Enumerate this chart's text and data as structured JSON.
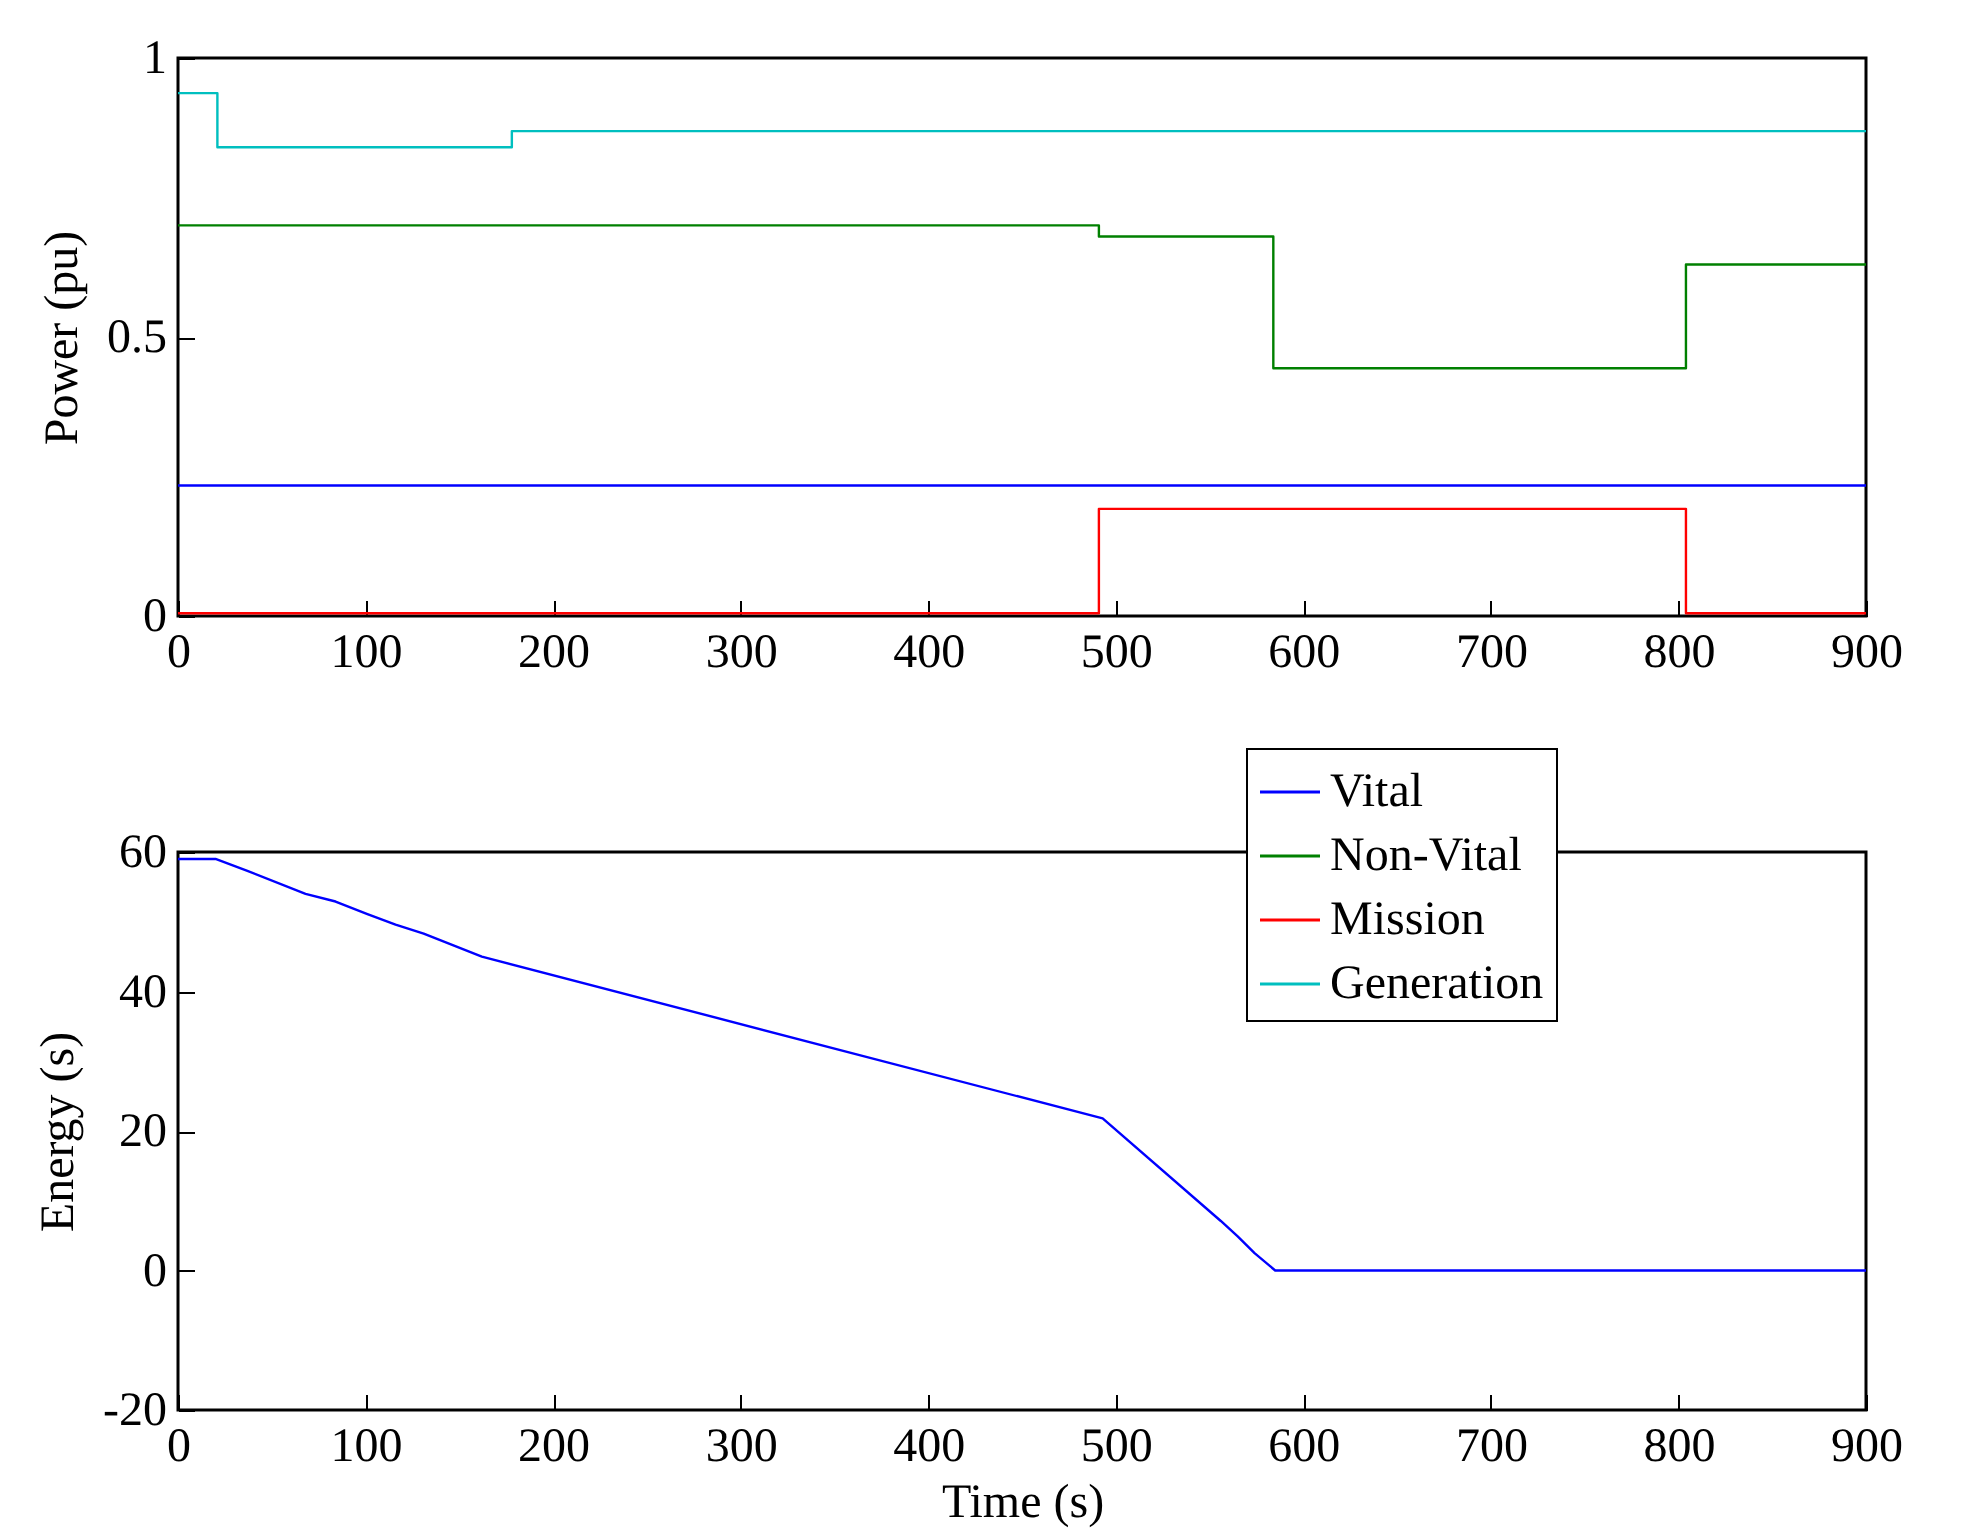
{
  "chart_data": [
    {
      "type": "step",
      "ylabel": "Power (pu)",
      "xlim": [
        0,
        900
      ],
      "xticks": [
        0,
        100,
        200,
        300,
        400,
        500,
        600,
        700,
        800,
        900
      ],
      "ylim": [
        0,
        1
      ],
      "yticks": [
        {
          "value": 0,
          "label": "0"
        },
        0.5,
        {
          "value": 1,
          "label": "1"
        }
      ],
      "legend": "bottom right",
      "series": [
        {
          "name": "Vital",
          "color": "#0000ff",
          "x": [
            0,
            900
          ],
          "values": [
            0.234,
            0.234
          ]
        },
        {
          "name": "Non-Vital",
          "color": "#008000",
          "x": [
            0,
            491,
            584,
            804,
            900
          ],
          "values": [
            0.7,
            0.68,
            0.444,
            0.63,
            0.63
          ]
        },
        {
          "name": "Mission",
          "color": "#ff0000",
          "x": [
            0,
            491,
            804,
            900
          ],
          "values": [
            0.005,
            0.192,
            0.005,
            0.005
          ]
        },
        {
          "name": "Generation",
          "color": "#00bfbf",
          "x": [
            0,
            21,
            178,
            900
          ],
          "values": [
            0.937,
            0.84,
            0.869,
            0.869
          ]
        }
      ]
    },
    {
      "type": "line",
      "xlabel": "Time (s)",
      "ylabel": "Energy (s)",
      "xlim": [
        0,
        900
      ],
      "xticks": [
        0,
        100,
        200,
        300,
        400,
        500,
        600,
        700,
        800,
        900
      ],
      "ylim": [
        -20,
        60
      ],
      "yticks": [
        -20,
        0,
        20,
        40,
        60
      ],
      "series": [
        {
          "color": "#0000ff",
          "x": [
            0,
            20,
            37,
            68,
            84,
            101,
            116,
            131,
            162,
            493,
            556,
            565,
            574,
            585,
            900
          ],
          "values": [
            59,
            59,
            57.3,
            54,
            52.9,
            51.1,
            49.6,
            48.3,
            45,
            21.8,
            7.1,
            4.9,
            2.5,
            0,
            0
          ]
        }
      ]
    }
  ]
}
